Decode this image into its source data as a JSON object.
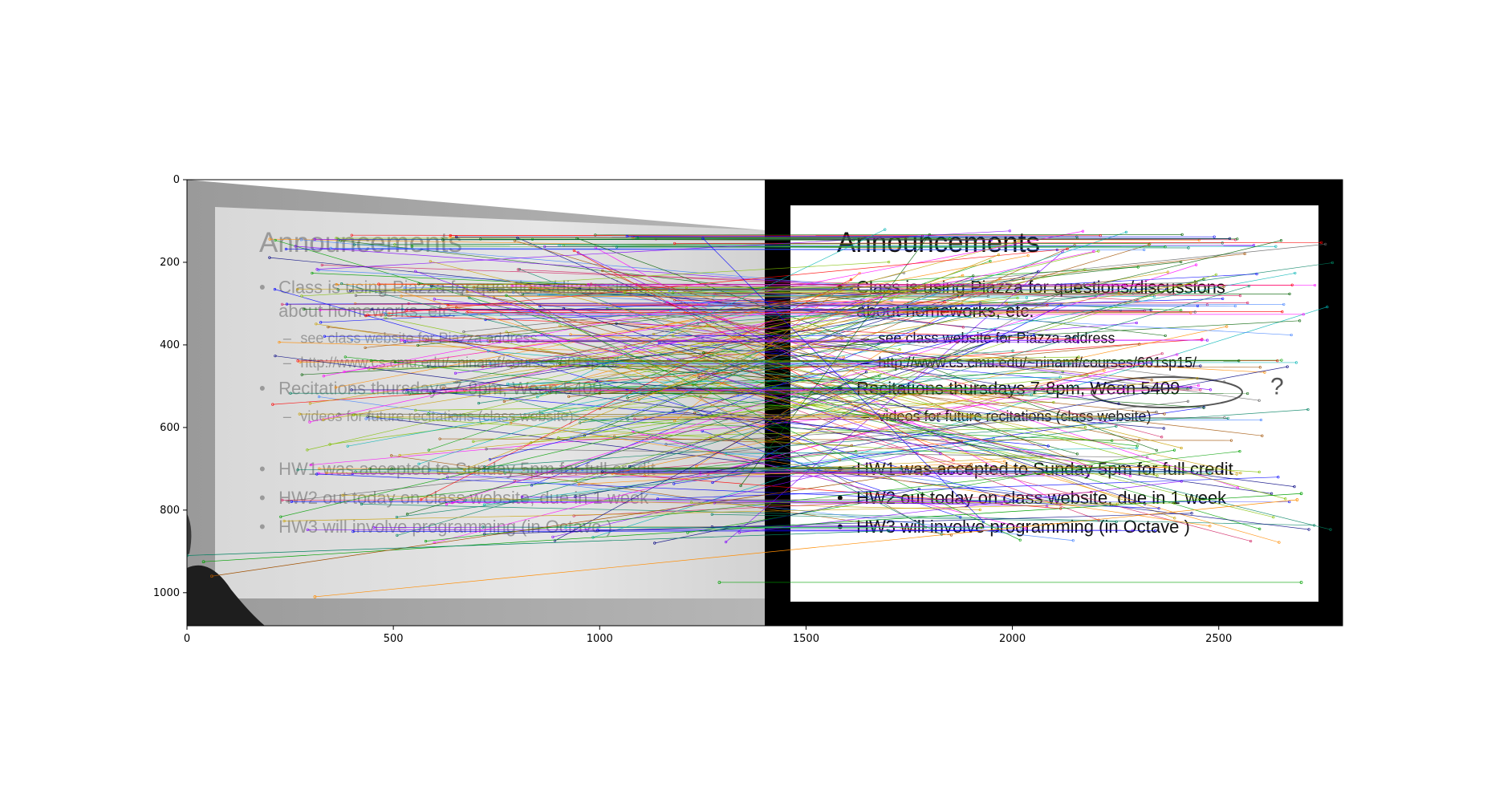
{
  "figure": {
    "x_ticks": [
      {
        "value": 0,
        "label": "0"
      },
      {
        "value": 500,
        "label": "500"
      },
      {
        "value": 1000,
        "label": "1000"
      },
      {
        "value": 1500,
        "label": "1500"
      },
      {
        "value": 2000,
        "label": "2000"
      },
      {
        "value": 2500,
        "label": "2500"
      }
    ],
    "y_ticks": [
      {
        "value": 0,
        "label": "0"
      },
      {
        "value": 200,
        "label": "200"
      },
      {
        "value": 400,
        "label": "400"
      },
      {
        "value": 600,
        "label": "600"
      },
      {
        "value": 800,
        "label": "800"
      },
      {
        "value": 1000,
        "label": "1000"
      }
    ],
    "xlim": [
      0,
      2800
    ],
    "ylim": [
      1080,
      0
    ],
    "left_image_width": 1400,
    "right_image_offset": 1400
  },
  "slide": {
    "title": "Announcements",
    "lines": [
      {
        "level": 1,
        "text": "Class is using Piazza for questions/discussions",
        "y": 265
      },
      {
        "level": 1,
        "text": "about homeworks, etc.",
        "y": 322,
        "cont": true
      },
      {
        "level": 2,
        "text": "see class website for Piazza address",
        "y": 385
      },
      {
        "level": 2,
        "text": "http://www.cs.cmu.edu/~ninamf/courses/601sp15/",
        "y": 445
      },
      {
        "level": 1,
        "text": "Recitations thursdays 7-8pm, Wean 5409",
        "y": 510
      },
      {
        "level": 2,
        "text": "videos for future recitations (class website)",
        "y": 575
      },
      {
        "level": 1,
        "text": "HW1 was accepted to Sunday 5pm for full credit",
        "y": 705
      },
      {
        "level": 1,
        "text": "HW2 out today on class website, due in 1 week",
        "y": 775
      },
      {
        "level": 1,
        "text": "HW3 will involve programming (in Octave )",
        "y": 845
      }
    ],
    "annotation_mark": "?"
  },
  "colors": {
    "match_palette": [
      "#ff0000",
      "#00a000",
      "#0000ff",
      "#c8a000",
      "#ff00ff",
      "#00b4b4",
      "#ff8c00",
      "#8000ff",
      "#008060",
      "#a05000",
      "#4080ff",
      "#80c000",
      "#d02060",
      "#006000",
      "#000080",
      "#606060"
    ]
  }
}
